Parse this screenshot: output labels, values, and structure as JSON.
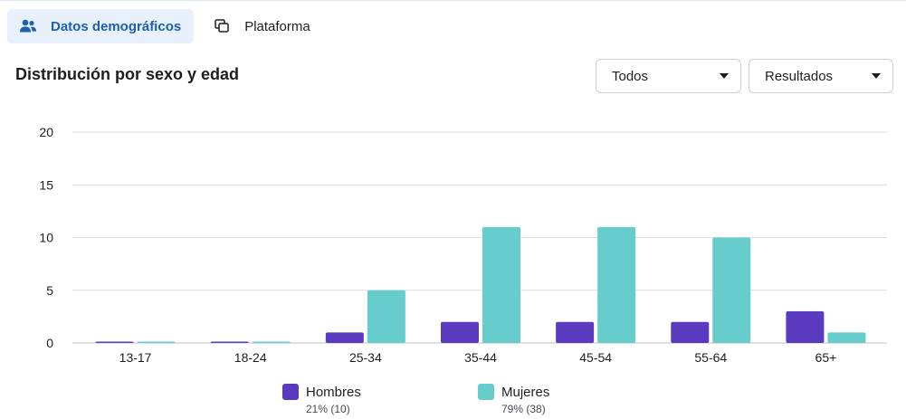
{
  "tabs": [
    {
      "label": "Datos demográficos",
      "icon": "people-icon",
      "active": true
    },
    {
      "label": "Plataforma",
      "icon": "devices-icon",
      "active": false
    }
  ],
  "section": {
    "title": "Distribución por sexo y edad"
  },
  "filters": {
    "audience": {
      "selected": "Todos"
    },
    "metric": {
      "selected": "Resultados"
    }
  },
  "colors": {
    "hombres": "#5a3bbf",
    "mujeres": "#66cccc",
    "active_tab_bg": "#e7f0fb",
    "active_tab_text": "#1e5fae"
  },
  "legend": {
    "hombres": {
      "name": "Hombres",
      "summary": "21% (10)"
    },
    "mujeres": {
      "name": "Mujeres",
      "summary": "79% (38)"
    }
  },
  "chart_data": {
    "type": "bar",
    "categories": [
      "13-17",
      "18-24",
      "25-34",
      "35-44",
      "45-54",
      "55-64",
      "65+"
    ],
    "series": [
      {
        "name": "Hombres",
        "values": [
          0,
          0,
          1,
          2,
          2,
          2,
          3
        ]
      },
      {
        "name": "Mujeres",
        "values": [
          0,
          0,
          5,
          11,
          11,
          10,
          1
        ]
      }
    ],
    "ylim": [
      0,
      20
    ],
    "yticks": [
      0,
      5,
      10,
      15,
      20
    ],
    "grid": true,
    "legend": "bottom"
  }
}
